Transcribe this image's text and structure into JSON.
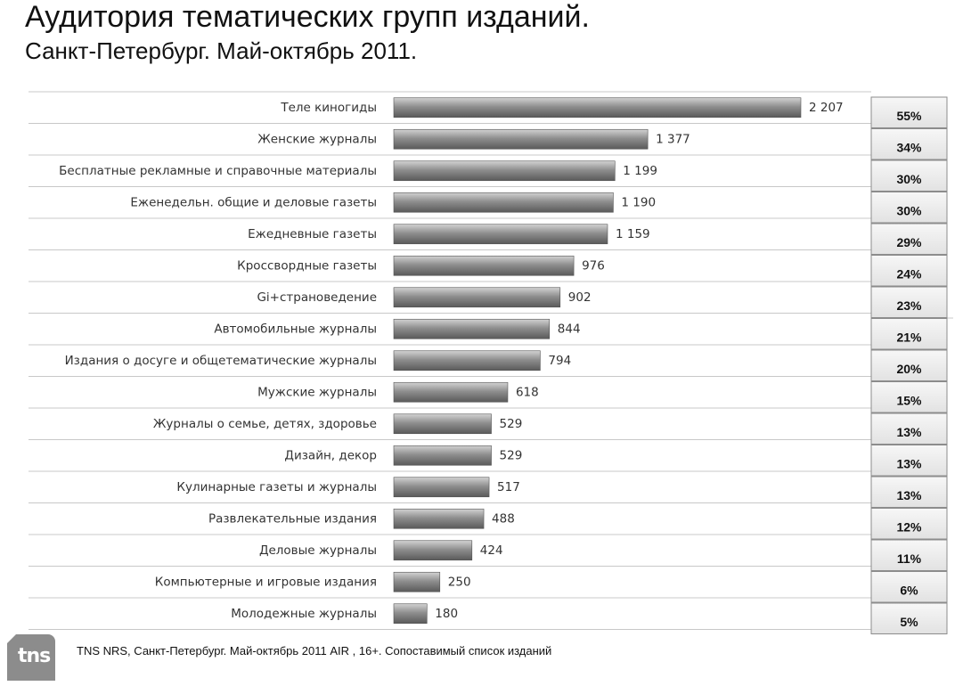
{
  "chart_data": {
    "type": "bar",
    "orientation": "horizontal",
    "title": "Аудитория тематических групп изданий.",
    "subtitle": "Санкт-Петербург. Май-октябрь 2011.",
    "categories": [
      "Теле киногиды",
      "Женские журналы",
      "Бесплатные рекламные и справочные материалы",
      "Еженедельн. общие и деловые газеты",
      "Ежедневные газеты",
      "Кроссвордные газеты",
      "Gi+страноведение",
      "Автомобильные журналы",
      "Издания о досуге и общетематические журналы",
      "Мужские журналы",
      "Журналы о семье, детях, здоровье",
      "Дизайн, декор",
      "Кулинарные газеты и журналы",
      "Развлекательные издания",
      "Деловые журналы",
      "Компьютерные и игровые издания",
      "Молодежные журналы"
    ],
    "values": [
      2207,
      1377,
      1199,
      1190,
      1159,
      976,
      902,
      844,
      794,
      618,
      529,
      529,
      517,
      488,
      424,
      250,
      180
    ],
    "value_labels": [
      "2 207",
      "1 377",
      "1 199",
      "1 190",
      "1 159",
      "976",
      "902",
      "844",
      "794",
      "618",
      "529",
      "529",
      "517",
      "488",
      "424",
      "250",
      "180"
    ],
    "percentages": [
      "55%",
      "34%",
      "30%",
      "30%",
      "29%",
      "24%",
      "23%",
      "21%",
      "20%",
      "15%",
      "13%",
      "13%",
      "13%",
      "12%",
      "11%",
      "6%",
      "5%"
    ],
    "xlim": [
      0,
      2400
    ],
    "grid": false,
    "colors": {
      "bar": "#8a8a8a",
      "bar_light": "#cfcfcf",
      "bar_dark": "#5e5e5e",
      "row_line": "#c8c8c8",
      "pct_border": "#8c8c8c",
      "pct_fill": "#ececec"
    }
  },
  "footnote": "TNS NRS, Санкт-Петербург.  Май-октябрь  2011  AIR ,  16+. Сопоставимый список изданий",
  "logo": {
    "text": "tns",
    "icon": "tns-logo-icon",
    "color": "#8c8c8c"
  }
}
